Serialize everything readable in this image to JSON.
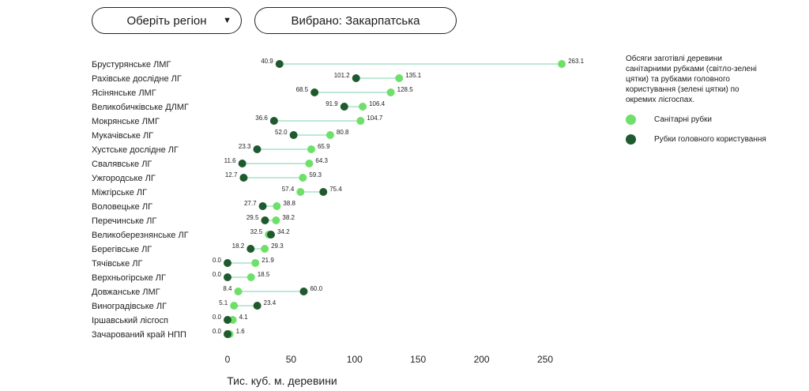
{
  "controls": {
    "region_select": "Оберіть регіон",
    "selected": "Вибрано: Закарпатська"
  },
  "legend": {
    "description": "Обсяги заготівлі деревини санітарними рубками (світло-зелені цятки) та рубками головного користування (зелені цятки) по окремих лісгоспах.",
    "items": [
      "Санітарні рубки",
      "Рубки головного користування"
    ]
  },
  "colors": {
    "sanitary": "#6ee06a",
    "main": "#1f5a2e",
    "line": "#a8e0c8"
  },
  "chart_data": {
    "type": "dumbbell",
    "xlabel": "Тис. куб. м. деревини",
    "xlim": [
      0,
      250
    ],
    "xticks": [
      0,
      50,
      100,
      150,
      200,
      250
    ],
    "categories": [
      "Брустурянське ЛМГ",
      "Рахівське дослідне ЛГ",
      "Ясінянське ЛМГ",
      "Великобичківське ДЛМГ",
      "Мокрянське ЛМГ",
      "Мукачівське ЛГ",
      "Хустське дослідне ЛГ",
      "Свалявське ЛГ",
      "Ужгородське ЛГ",
      "Міжгірське ЛГ",
      "Воловецьке ЛГ",
      "Перечинське ЛГ",
      "Великоберезнянське ЛГ",
      "Берегівське ЛГ",
      "Тячівське ЛГ",
      "Верхньогірське ЛГ",
      "Довжанське ЛМГ",
      "Виноградівське ЛГ",
      "Іршавський лісгосп",
      "Зачарований край НПП"
    ],
    "series": [
      {
        "name": "Санітарні рубки",
        "values": [
          263.1,
          135.1,
          128.5,
          106.4,
          104.7,
          80.8,
          65.9,
          64.3,
          59.3,
          57.4,
          38.8,
          38.2,
          32.5,
          29.3,
          21.9,
          18.5,
          8.4,
          5.1,
          4.1,
          1.6
        ]
      },
      {
        "name": "Рубки головного користування",
        "values": [
          40.9,
          101.2,
          68.5,
          91.9,
          36.6,
          52.0,
          23.3,
          11.6,
          12.7,
          75.4,
          27.7,
          29.5,
          34.2,
          18.2,
          0.0,
          0.0,
          60.0,
          23.4,
          0.0,
          0.0
        ]
      }
    ]
  }
}
